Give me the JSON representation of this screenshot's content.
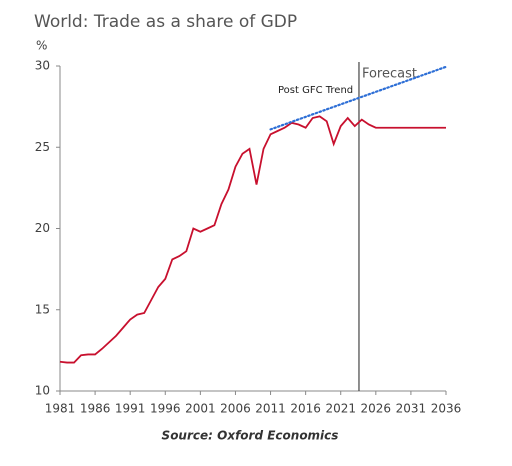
{
  "chart_data": {
    "type": "line",
    "title": "World: Trade as a share of GDP",
    "ylabel": "%",
    "source": "Source: Oxford Economics",
    "x": [
      1981,
      1982,
      1983,
      1984,
      1985,
      1986,
      1987,
      1988,
      1989,
      1990,
      1991,
      1992,
      1993,
      1994,
      1995,
      1996,
      1997,
      1998,
      1999,
      2000,
      2001,
      2002,
      2003,
      2004,
      2005,
      2006,
      2007,
      2008,
      2009,
      2010,
      2011,
      2012,
      2013,
      2014,
      2015,
      2016,
      2017,
      2018,
      2019,
      2020,
      2021,
      2022,
      2023,
      2024,
      2025,
      2026,
      2027,
      2028,
      2029,
      2030,
      2031,
      2032,
      2033,
      2034,
      2035,
      2036
    ],
    "series": [
      {
        "color": "#c8102e",
        "values": [
          11.8,
          11.75,
          11.75,
          12.2,
          12.25,
          12.25,
          12.6,
          13.0,
          13.4,
          13.9,
          14.4,
          14.7,
          14.8,
          15.6,
          16.4,
          16.9,
          18.1,
          18.3,
          18.6,
          20.0,
          19.8,
          20.0,
          20.2,
          21.5,
          22.4,
          23.8,
          24.6,
          24.9,
          22.7,
          24.9,
          25.8,
          26.0,
          26.2,
          26.5,
          26.4,
          26.2,
          26.8,
          26.9,
          26.6,
          25.2,
          26.3,
          26.8,
          26.3,
          26.7,
          26.4,
          26.2,
          26.2,
          26.2,
          26.2,
          26.2,
          26.2,
          26.2,
          26.2,
          26.2,
          26.2,
          26.2
        ]
      },
      {
        "name": "Post GFC Trend",
        "color": "#2e6fd6",
        "dotted": true,
        "x": [
          2011,
          2036
        ],
        "values": [
          26.1,
          29.95
        ]
      }
    ],
    "forecast": {
      "label": "Forecast",
      "x": 2023.6
    },
    "xlim": [
      1981,
      2036
    ],
    "xticks": [
      1981,
      1986,
      1991,
      1996,
      2001,
      2006,
      2011,
      2016,
      2021,
      2026,
      2031,
      2036
    ],
    "ylim": [
      10,
      30
    ],
    "yticks": [
      10,
      15,
      20,
      25,
      30
    ],
    "grid": false
  }
}
